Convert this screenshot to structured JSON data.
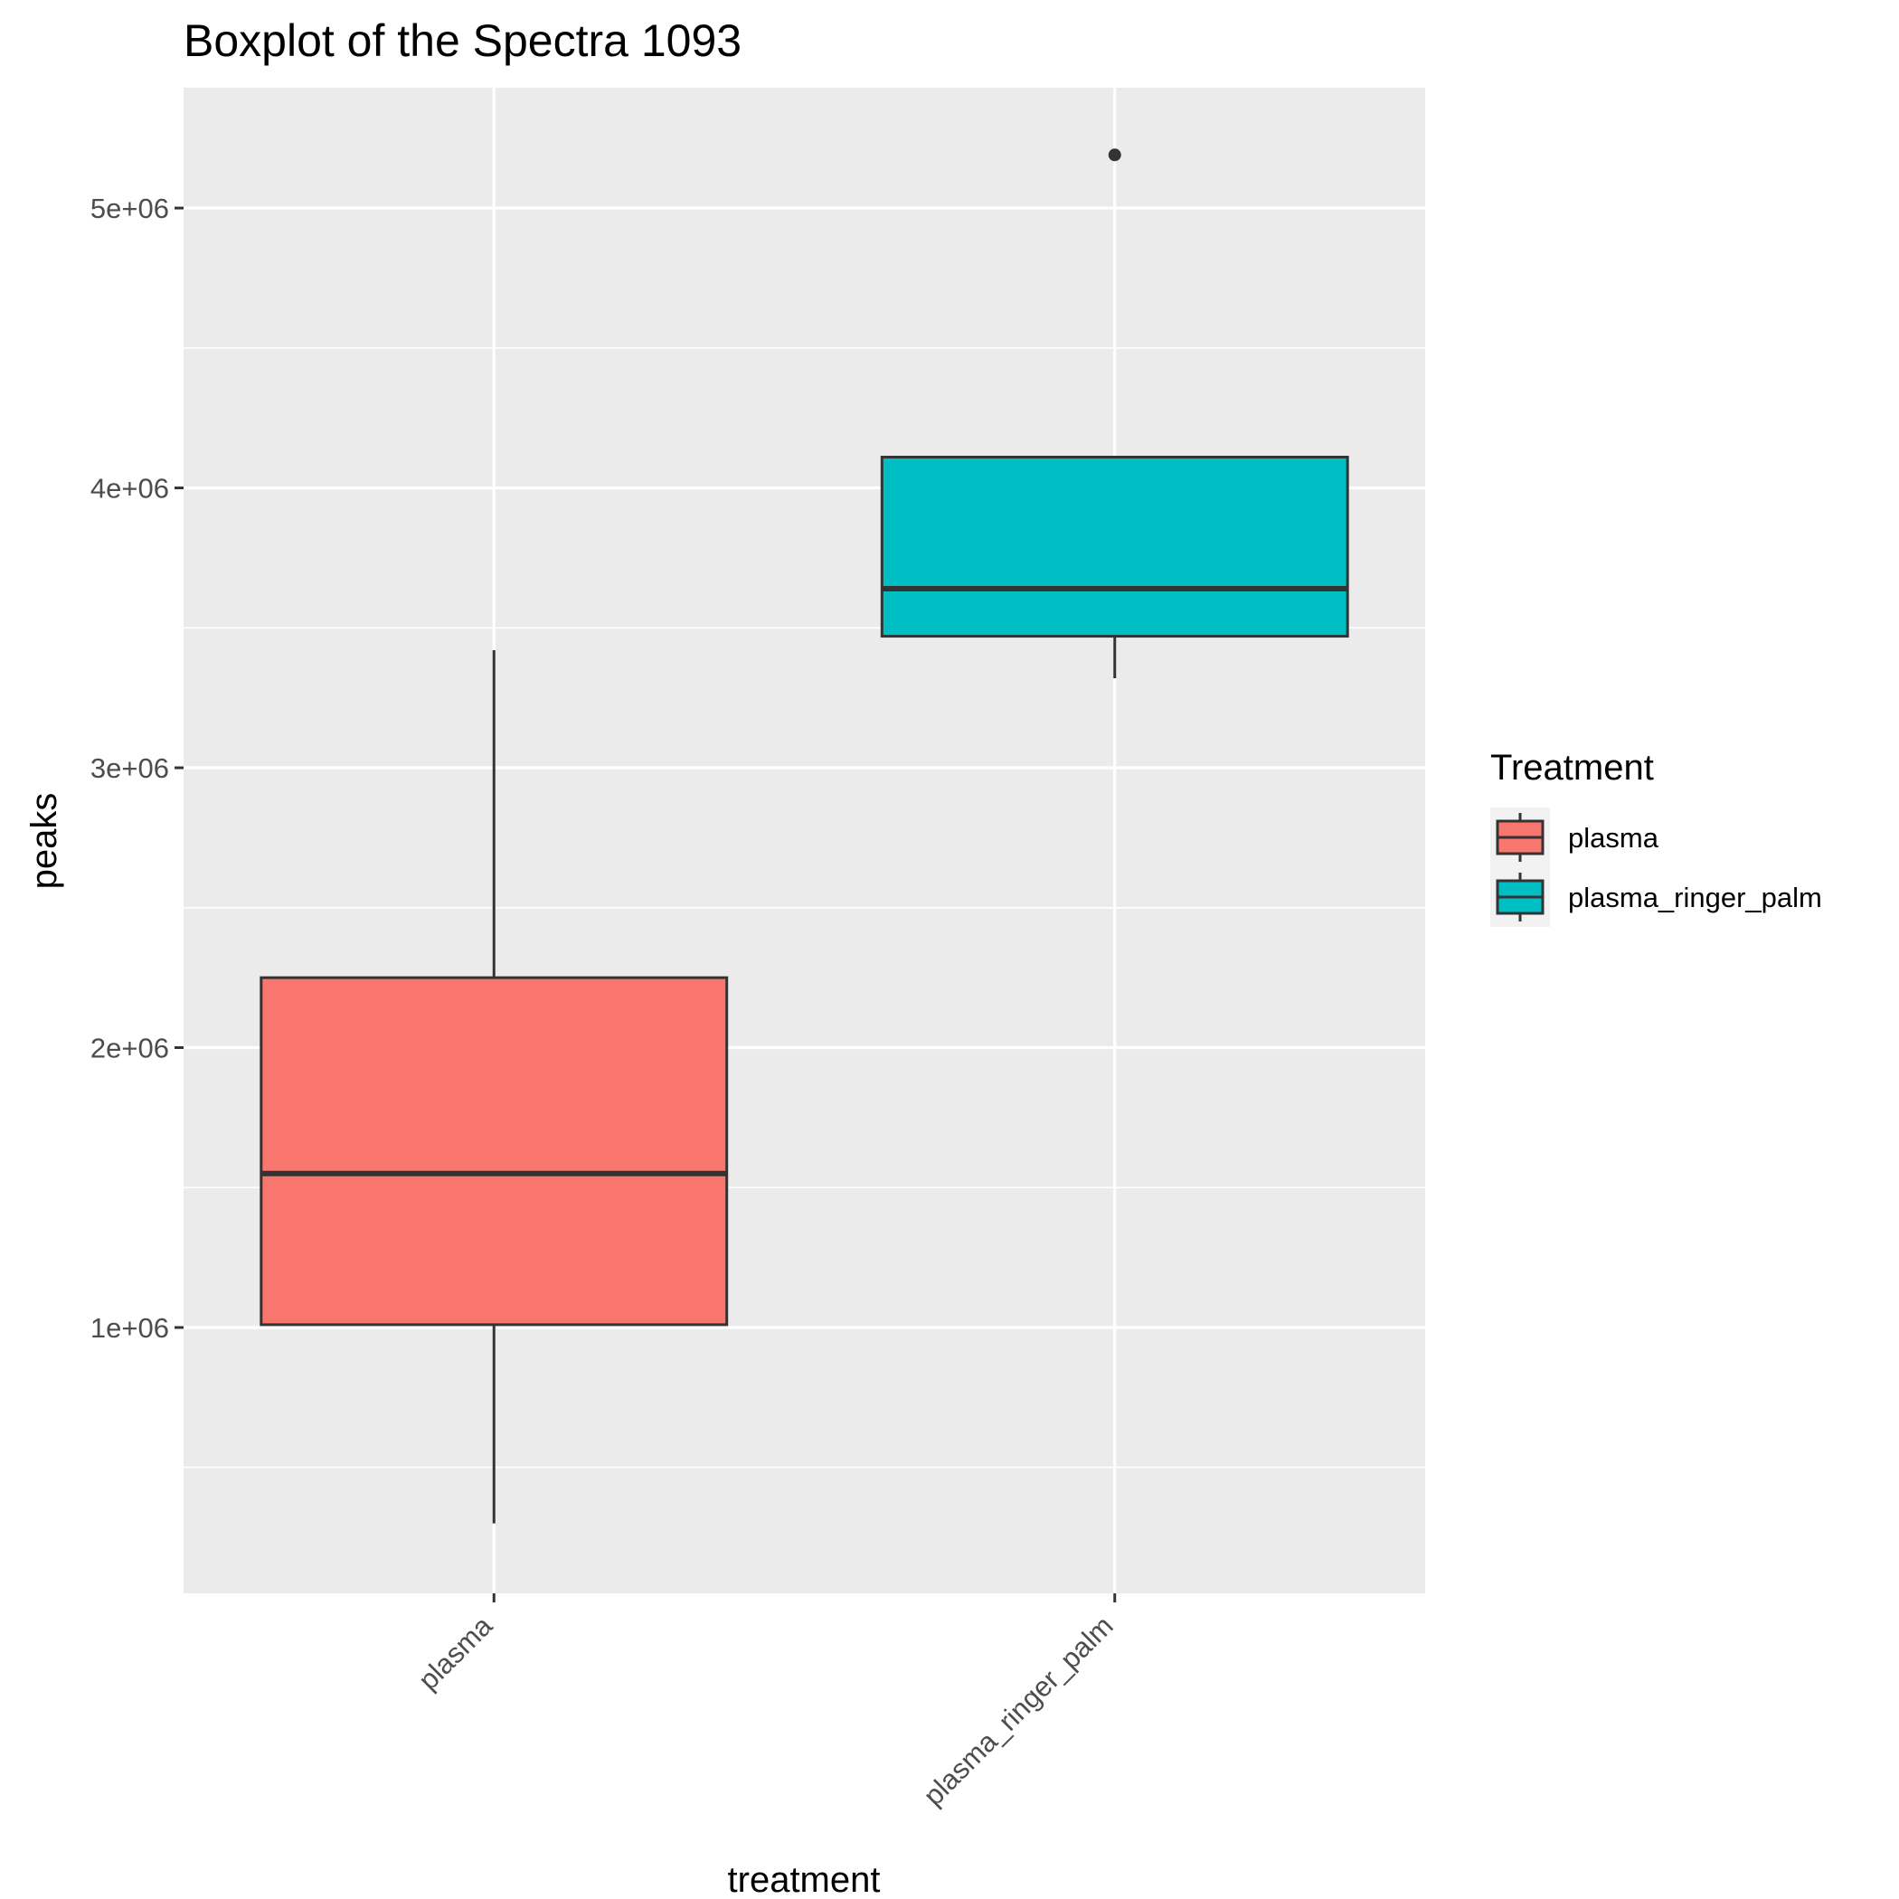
{
  "chart_data": {
    "type": "boxplot",
    "title": "Boxplot of the Spectra 1093",
    "xlabel": "treatment",
    "ylabel": "peaks",
    "ylim": [
      50000,
      5430000
    ],
    "yticks": [
      1000000,
      2000000,
      3000000,
      4000000,
      5000000
    ],
    "ytick_labels": [
      "1e+06",
      "2e+06",
      "3e+06",
      "4e+06",
      "5e+06"
    ],
    "categories": [
      "plasma",
      "plasma_ringer_palm"
    ],
    "series": [
      {
        "name": "plasma",
        "color": "#f8766d",
        "whisker_low": 300000,
        "q1": 1010000,
        "median": 1550000,
        "q3": 2250000,
        "whisker_high": 3420000,
        "outliers": []
      },
      {
        "name": "plasma_ringer_palm",
        "color": "#00bfc4",
        "whisker_low": 3320000,
        "q1": 3470000,
        "median": 3640000,
        "q3": 4110000,
        "whisker_high": 4110000,
        "outliers": [
          5190000
        ]
      }
    ],
    "legend": {
      "title": "Treatment",
      "placement": "right",
      "entries": [
        "plasma",
        "plasma_ringer_palm"
      ]
    },
    "grid": true,
    "panel_background": "#ebebeb"
  }
}
